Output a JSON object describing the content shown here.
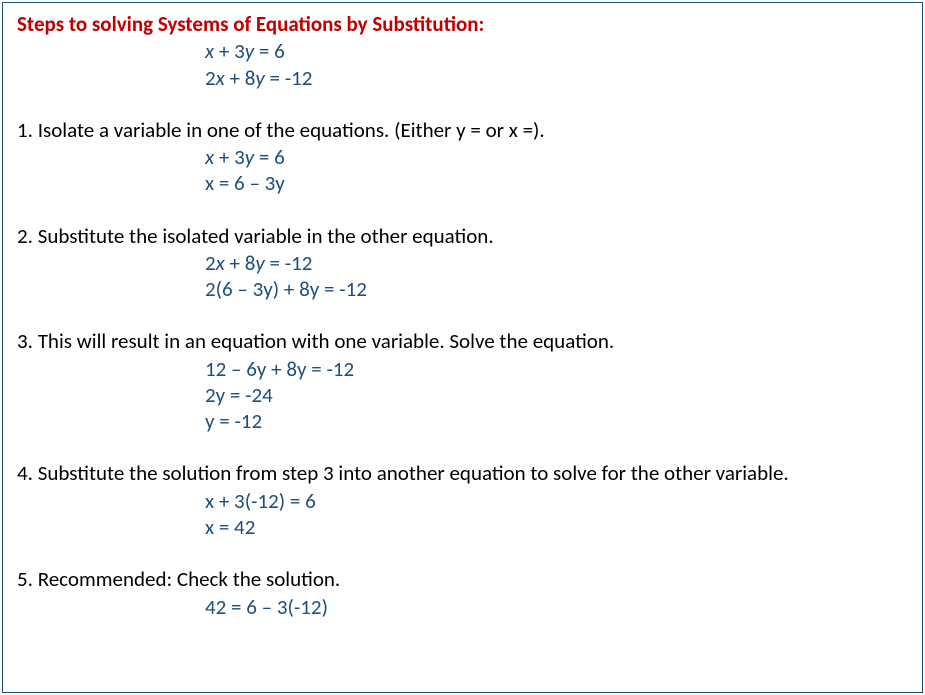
{
  "title": "Steps to solving Systems of Equations by Substitution:",
  "intro_equations": {
    "eq1_lhs_var1": "x",
    "eq1_mid": " + 3",
    "eq1_lhs_var2": "y",
    "eq1_rhs": " = 6",
    "eq2_coef1": "2",
    "eq2_var1": "x",
    "eq2_mid": " + 8",
    "eq2_var2": "y",
    "eq2_rhs": " = -12"
  },
  "step1": {
    "text": "1. Isolate a variable in one of the equations. (Either y = or x =).",
    "eq1_var1": "x",
    "eq1_mid": " + 3",
    "eq1_var2": "y",
    "eq1_rhs": " = 6",
    "eq2": "x = 6 – 3y"
  },
  "step2": {
    "text": "2. Substitute the isolated variable in the other equation.",
    "eq1_coef1": "2",
    "eq1_var1": "x",
    "eq1_mid": " + 8",
    "eq1_var2": "y",
    "eq1_rhs": " = -12",
    "eq2": "2(6 – 3y) + 8y = -12"
  },
  "step3": {
    "text": "3. This will result in an equation with one variable. Solve the equation.",
    "eq1": "12 – 6y + 8y = -12",
    "eq2": "2y = -24",
    "eq3": "y = -12"
  },
  "step4": {
    "text": "4. Substitute the solution from step 3 into another equation to solve for the other variable.",
    "eq1": "x + 3(-12) = 6",
    "eq2": "x = 42"
  },
  "step5": {
    "text": "5. Recommended: Check the solution.",
    "eq1": "42 = 6 – 3(-12)"
  },
  "colors": {
    "title": "#c00000",
    "equation": "#1f4e79",
    "text": "#000000",
    "border": "#1f4e79",
    "background": "#ffffff"
  },
  "typography": {
    "font_family": "Calibri",
    "font_size_pt": 16,
    "title_weight": "bold"
  }
}
